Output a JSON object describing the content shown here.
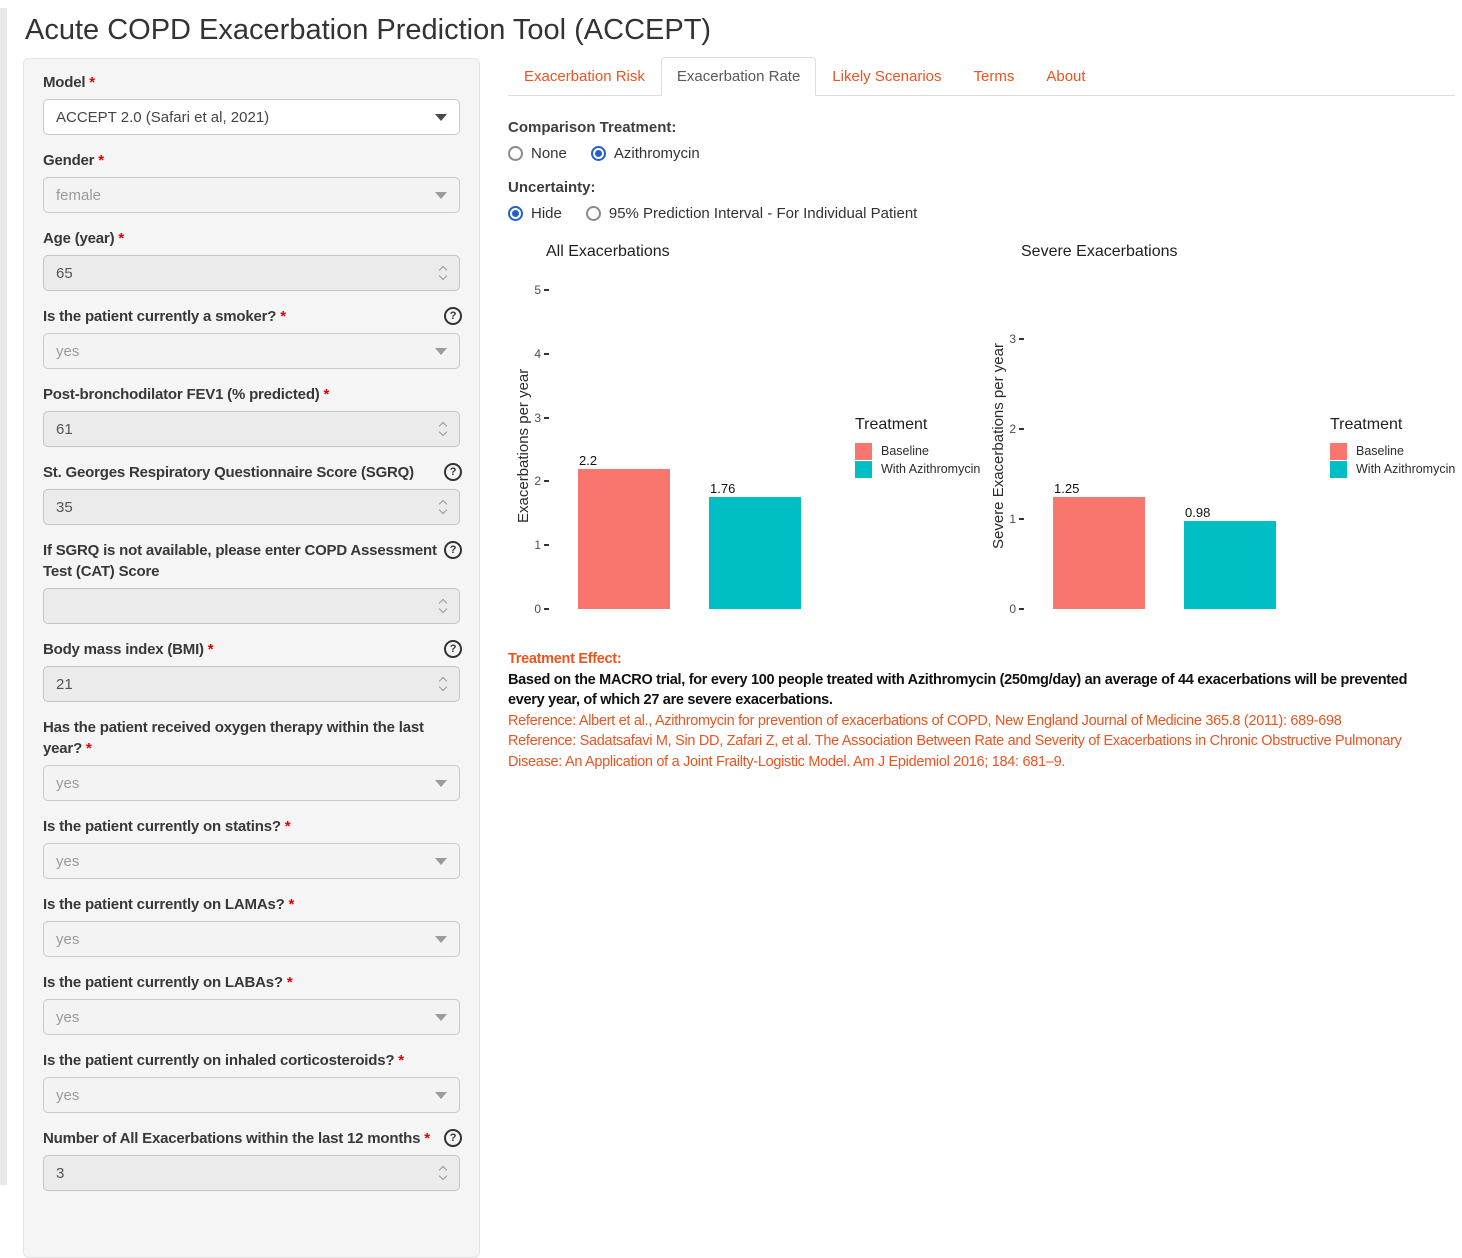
{
  "page": {
    "title": "Acute COPD Exacerbation Prediction Tool (ACCEPT)"
  },
  "colors": {
    "accent": "#E95420",
    "baseline_bar": "#F8766D",
    "treatment_bar": "#00BFC4",
    "radio_selected": "#2061cb"
  },
  "sidebar": {
    "fields": [
      {
        "id": "model",
        "label": "Model",
        "required": true,
        "help": false,
        "type": "select",
        "disabled": false,
        "value": "ACCEPT 2.0 (Safari et al, 2021)"
      },
      {
        "id": "gender",
        "label": "Gender",
        "required": true,
        "help": false,
        "type": "select",
        "disabled": true,
        "value": "female"
      },
      {
        "id": "age",
        "label": "Age (year)",
        "required": true,
        "help": false,
        "type": "number",
        "value": "65"
      },
      {
        "id": "smoker",
        "label": "Is the patient currently a smoker?",
        "required": true,
        "help": true,
        "type": "select",
        "disabled": true,
        "value": "yes"
      },
      {
        "id": "fev1",
        "label": "Post-bronchodilator FEV1 (% predicted)",
        "required": true,
        "help": false,
        "type": "number",
        "value": "61"
      },
      {
        "id": "sgrq",
        "label": "St. Georges Respiratory Questionnaire Score (SGRQ)",
        "required": false,
        "help": true,
        "type": "number",
        "value": "35"
      },
      {
        "id": "cat",
        "label": "If SGRQ is not available, please enter COPD Assessment Test (CAT) Score",
        "required": false,
        "help": true,
        "type": "number",
        "value": ""
      },
      {
        "id": "bmi",
        "label": "Body mass index (BMI)",
        "required": true,
        "help": true,
        "type": "number",
        "value": "21"
      },
      {
        "id": "oxygen",
        "label": "Has the patient received oxygen therapy within the last year?",
        "required": true,
        "help": false,
        "type": "select",
        "disabled": true,
        "value": "yes"
      },
      {
        "id": "statins",
        "label": "Is the patient currently on statins?",
        "required": true,
        "help": false,
        "type": "select",
        "disabled": true,
        "value": "yes"
      },
      {
        "id": "lamas",
        "label": "Is the patient currently on LAMAs?",
        "required": true,
        "help": false,
        "type": "select",
        "disabled": true,
        "value": "yes"
      },
      {
        "id": "labas",
        "label": "Is the patient currently on LABAs?",
        "required": true,
        "help": false,
        "type": "select",
        "disabled": true,
        "value": "yes"
      },
      {
        "id": "ics",
        "label": "Is the patient currently on inhaled corticosteroids?",
        "required": true,
        "help": false,
        "type": "select",
        "disabled": true,
        "value": "yes"
      },
      {
        "id": "exacerbations",
        "label": "Number of All Exacerbations within the last 12 months",
        "required": true,
        "help": true,
        "type": "number",
        "value": "3"
      }
    ]
  },
  "tabs": [
    {
      "label": "Exacerbation Risk",
      "active": false
    },
    {
      "label": "Exacerbation Rate",
      "active": true
    },
    {
      "label": "Likely Scenarios",
      "active": false
    },
    {
      "label": "Terms",
      "active": false
    },
    {
      "label": "About",
      "active": false
    }
  ],
  "controls": {
    "comparison": {
      "label": "Comparison Treatment:",
      "options": [
        {
          "label": "None",
          "selected": false
        },
        {
          "label": "Azithromycin",
          "selected": true
        }
      ]
    },
    "uncertainty": {
      "label": "Uncertainty:",
      "options": [
        {
          "label": "Hide",
          "selected": true
        },
        {
          "label": "95% Prediction Interval - For Individual Patient",
          "selected": false
        }
      ]
    }
  },
  "chart_data": [
    {
      "type": "bar",
      "title": "All Exacerbations",
      "ylabel": "Exacerbations per year",
      "ylim": [
        0,
        5
      ],
      "yticks": [
        0,
        1,
        2,
        3,
        4,
        5
      ],
      "categories": [
        "Baseline",
        "With Azithromycin"
      ],
      "values": [
        2.2,
        1.76
      ],
      "bar_colors": [
        "#F8766D",
        "#00BFC4"
      ],
      "legend_title": "Treatment",
      "legend": [
        {
          "label": "Baseline",
          "color": "#F8766D"
        },
        {
          "label": "With Azithromycin",
          "color": "#00BFC4"
        }
      ],
      "grid": false,
      "legend_position": "right"
    },
    {
      "type": "bar",
      "title": "Severe Exacerbations",
      "ylabel": "Severe Exacerbations per year",
      "ylim": [
        0,
        3
      ],
      "yticks": [
        0,
        1,
        2,
        3
      ],
      "categories": [
        "Baseline",
        "With Azithromycin"
      ],
      "values": [
        1.25,
        0.98
      ],
      "bar_colors": [
        "#F8766D",
        "#00BFC4"
      ],
      "legend_title": "Treatment",
      "legend": [
        {
          "label": "Baseline",
          "color": "#F8766D"
        },
        {
          "label": "With Azithromycin",
          "color": "#00BFC4"
        }
      ],
      "grid": false,
      "legend_position": "right"
    }
  ],
  "treatment_effect": {
    "heading": "Treatment Effect:",
    "body": "Based on the MACRO trial, for every 100 people treated with Azithromycin (250mg/day) an average of 44 exacerbations will be prevented every year, of which 27 are severe exacerbations.",
    "references": [
      "Reference: Albert et al., Azithromycin for prevention of exacerbations of COPD, New England Journal of Medicine 365.8 (2011): 689-698",
      "Reference: Sadatsafavi M, Sin DD, Zafari Z, et al. The Association Between Rate and Severity of Exacerbations in Chronic Obstructive Pulmonary Disease: An Application of a Joint Frailty-Logistic Model. Am J Epidemiol 2016; 184: 681–9."
    ]
  }
}
